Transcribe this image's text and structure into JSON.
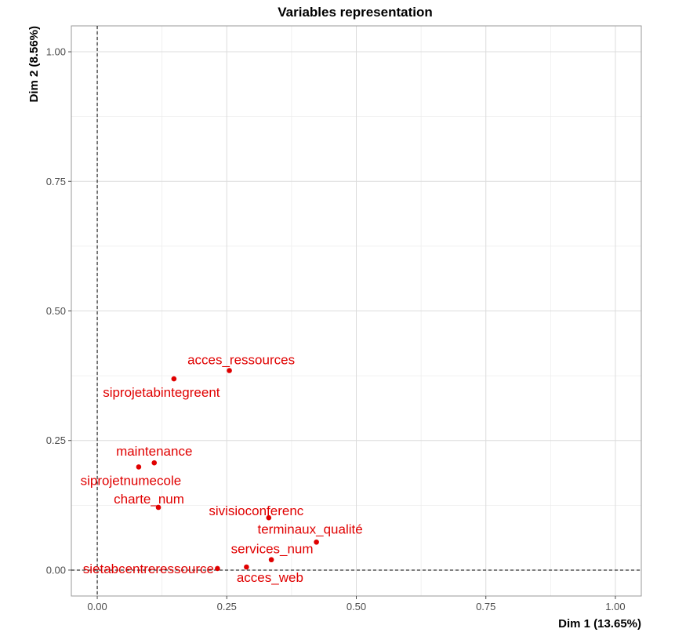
{
  "chart_data": {
    "type": "scatter",
    "title": "Variables representation",
    "xlabel": "Dim 1 (13.65%)",
    "ylabel": "Dim 2 (8.56%)",
    "xlim": [
      -0.05,
      1.05
    ],
    "ylim": [
      -0.05,
      1.05
    ],
    "xticks": [
      0.0,
      0.25,
      0.5,
      0.75,
      1.0
    ],
    "yticks": [
      0.0,
      0.25,
      0.5,
      0.75,
      1.0
    ],
    "xtick_labels": [
      "0.00",
      "0.25",
      "0.50",
      "0.75",
      "1.00"
    ],
    "ytick_labels": [
      "0.00",
      "0.25",
      "0.50",
      "0.75",
      "1.00"
    ],
    "grid": true,
    "reference_lines": {
      "x": 0,
      "y": 0
    },
    "point_color": "#e00000",
    "points": [
      {
        "label": "acces_ressources",
        "x": 0.255,
        "y": 0.385
      },
      {
        "label": "siprojetabintegreent",
        "x": 0.148,
        "y": 0.369
      },
      {
        "label": "maintenance",
        "x": 0.11,
        "y": 0.207
      },
      {
        "label": "siprojetnumecole",
        "x": 0.08,
        "y": 0.199
      },
      {
        "label": "charte_num",
        "x": 0.118,
        "y": 0.121
      },
      {
        "label": "sivisioconferenc",
        "x": 0.331,
        "y": 0.101
      },
      {
        "label": "terminaux_qualité",
        "x": 0.423,
        "y": 0.054
      },
      {
        "label": "services_num",
        "x": 0.336,
        "y": 0.02
      },
      {
        "label": "sietabcentreressource",
        "x": 0.232,
        "y": 0.003
      },
      {
        "label": "acces_web",
        "x": 0.288,
        "y": 0.006
      }
    ]
  }
}
